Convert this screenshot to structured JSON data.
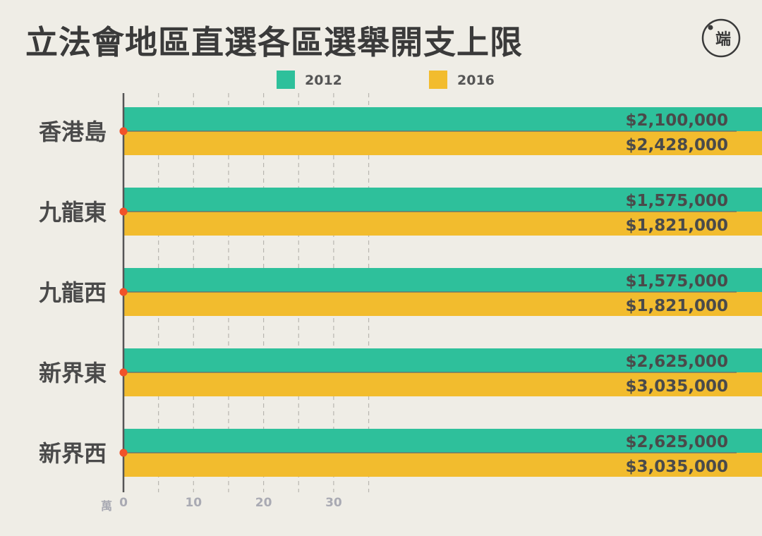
{
  "title": "立法會地區直選各區選舉開支上限",
  "logo": {
    "icon": "initium-logo-icon",
    "text": "端"
  },
  "chart_data": {
    "type": "bar",
    "orientation": "horizontal",
    "title": "立法會地區直選各區選舉開支上限",
    "categories": [
      "香港島",
      "九龍東",
      "九龍西",
      "新界東",
      "新界西"
    ],
    "series": [
      {
        "name": "2012",
        "color": "#2ec09b",
        "values": [
          2100000,
          1575000,
          1575000,
          2625000,
          2625000
        ],
        "labels": [
          "$2,100,000",
          "$1,575,000",
          "$1,575,000",
          "$2,625,000",
          "$2,625,000"
        ]
      },
      {
        "name": "2016",
        "color": "#f2bc2e",
        "values": [
          2428000,
          1821000,
          1821000,
          3035000,
          3035000
        ],
        "labels": [
          "$2,428,000",
          "$1,821,000",
          "$1,821,000",
          "$3,035,000",
          "$3,035,000"
        ]
      }
    ],
    "axis": {
      "unit_label": "萬",
      "unit_value": 10000,
      "ticks": [
        0,
        10,
        20,
        30
      ],
      "range": [
        0,
        35
      ],
      "grid": true
    },
    "legend_position": "top-center",
    "marker_color": "#f0522a"
  }
}
